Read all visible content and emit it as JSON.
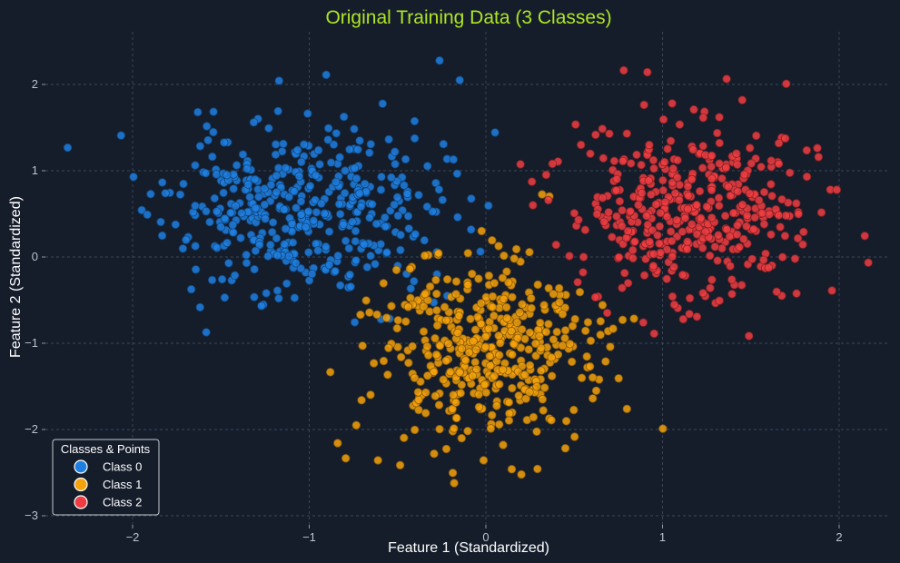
{
  "chart_data": {
    "type": "scatter",
    "title": "Original Training Data (3 Classes)",
    "xlabel": "Feature 1 (Standardized)",
    "ylabel": "Feature 2 (Standardized)",
    "xlim": [
      -2.5,
      2.3
    ],
    "ylim": [
      -3.0,
      2.6
    ],
    "xticks": [
      -2,
      -1,
      0,
      1,
      2
    ],
    "yticks": [
      2,
      1,
      0,
      -1,
      -2,
      -3
    ],
    "xtick_labels": [
      "−2",
      "−1",
      "0",
      "1",
      "2"
    ],
    "ytick_labels": [
      "2",
      "1",
      "0",
      "−1",
      "−2",
      "−3"
    ],
    "grid": true,
    "legend": {
      "title": "Classes & Points",
      "placement": "bottom-left"
    },
    "series": [
      {
        "name": "Class 0",
        "color": "#1f7fe0",
        "points_generated": true,
        "center": [
          -1.05,
          0.55
        ],
        "spread": [
          0.38,
          0.5
        ],
        "count": 420,
        "seed": 11
      },
      {
        "name": "Class 1",
        "color": "#f5a20c",
        "points_generated": true,
        "center": [
          -0.02,
          -1.1
        ],
        "spread": [
          0.3,
          0.55
        ],
        "count": 430,
        "seed": 23
      },
      {
        "name": "Class 2",
        "color": "#ee3d42",
        "points_generated": true,
        "center": [
          1.18,
          0.55
        ],
        "spread": [
          0.34,
          0.52
        ],
        "count": 420,
        "seed": 37
      }
    ]
  }
}
